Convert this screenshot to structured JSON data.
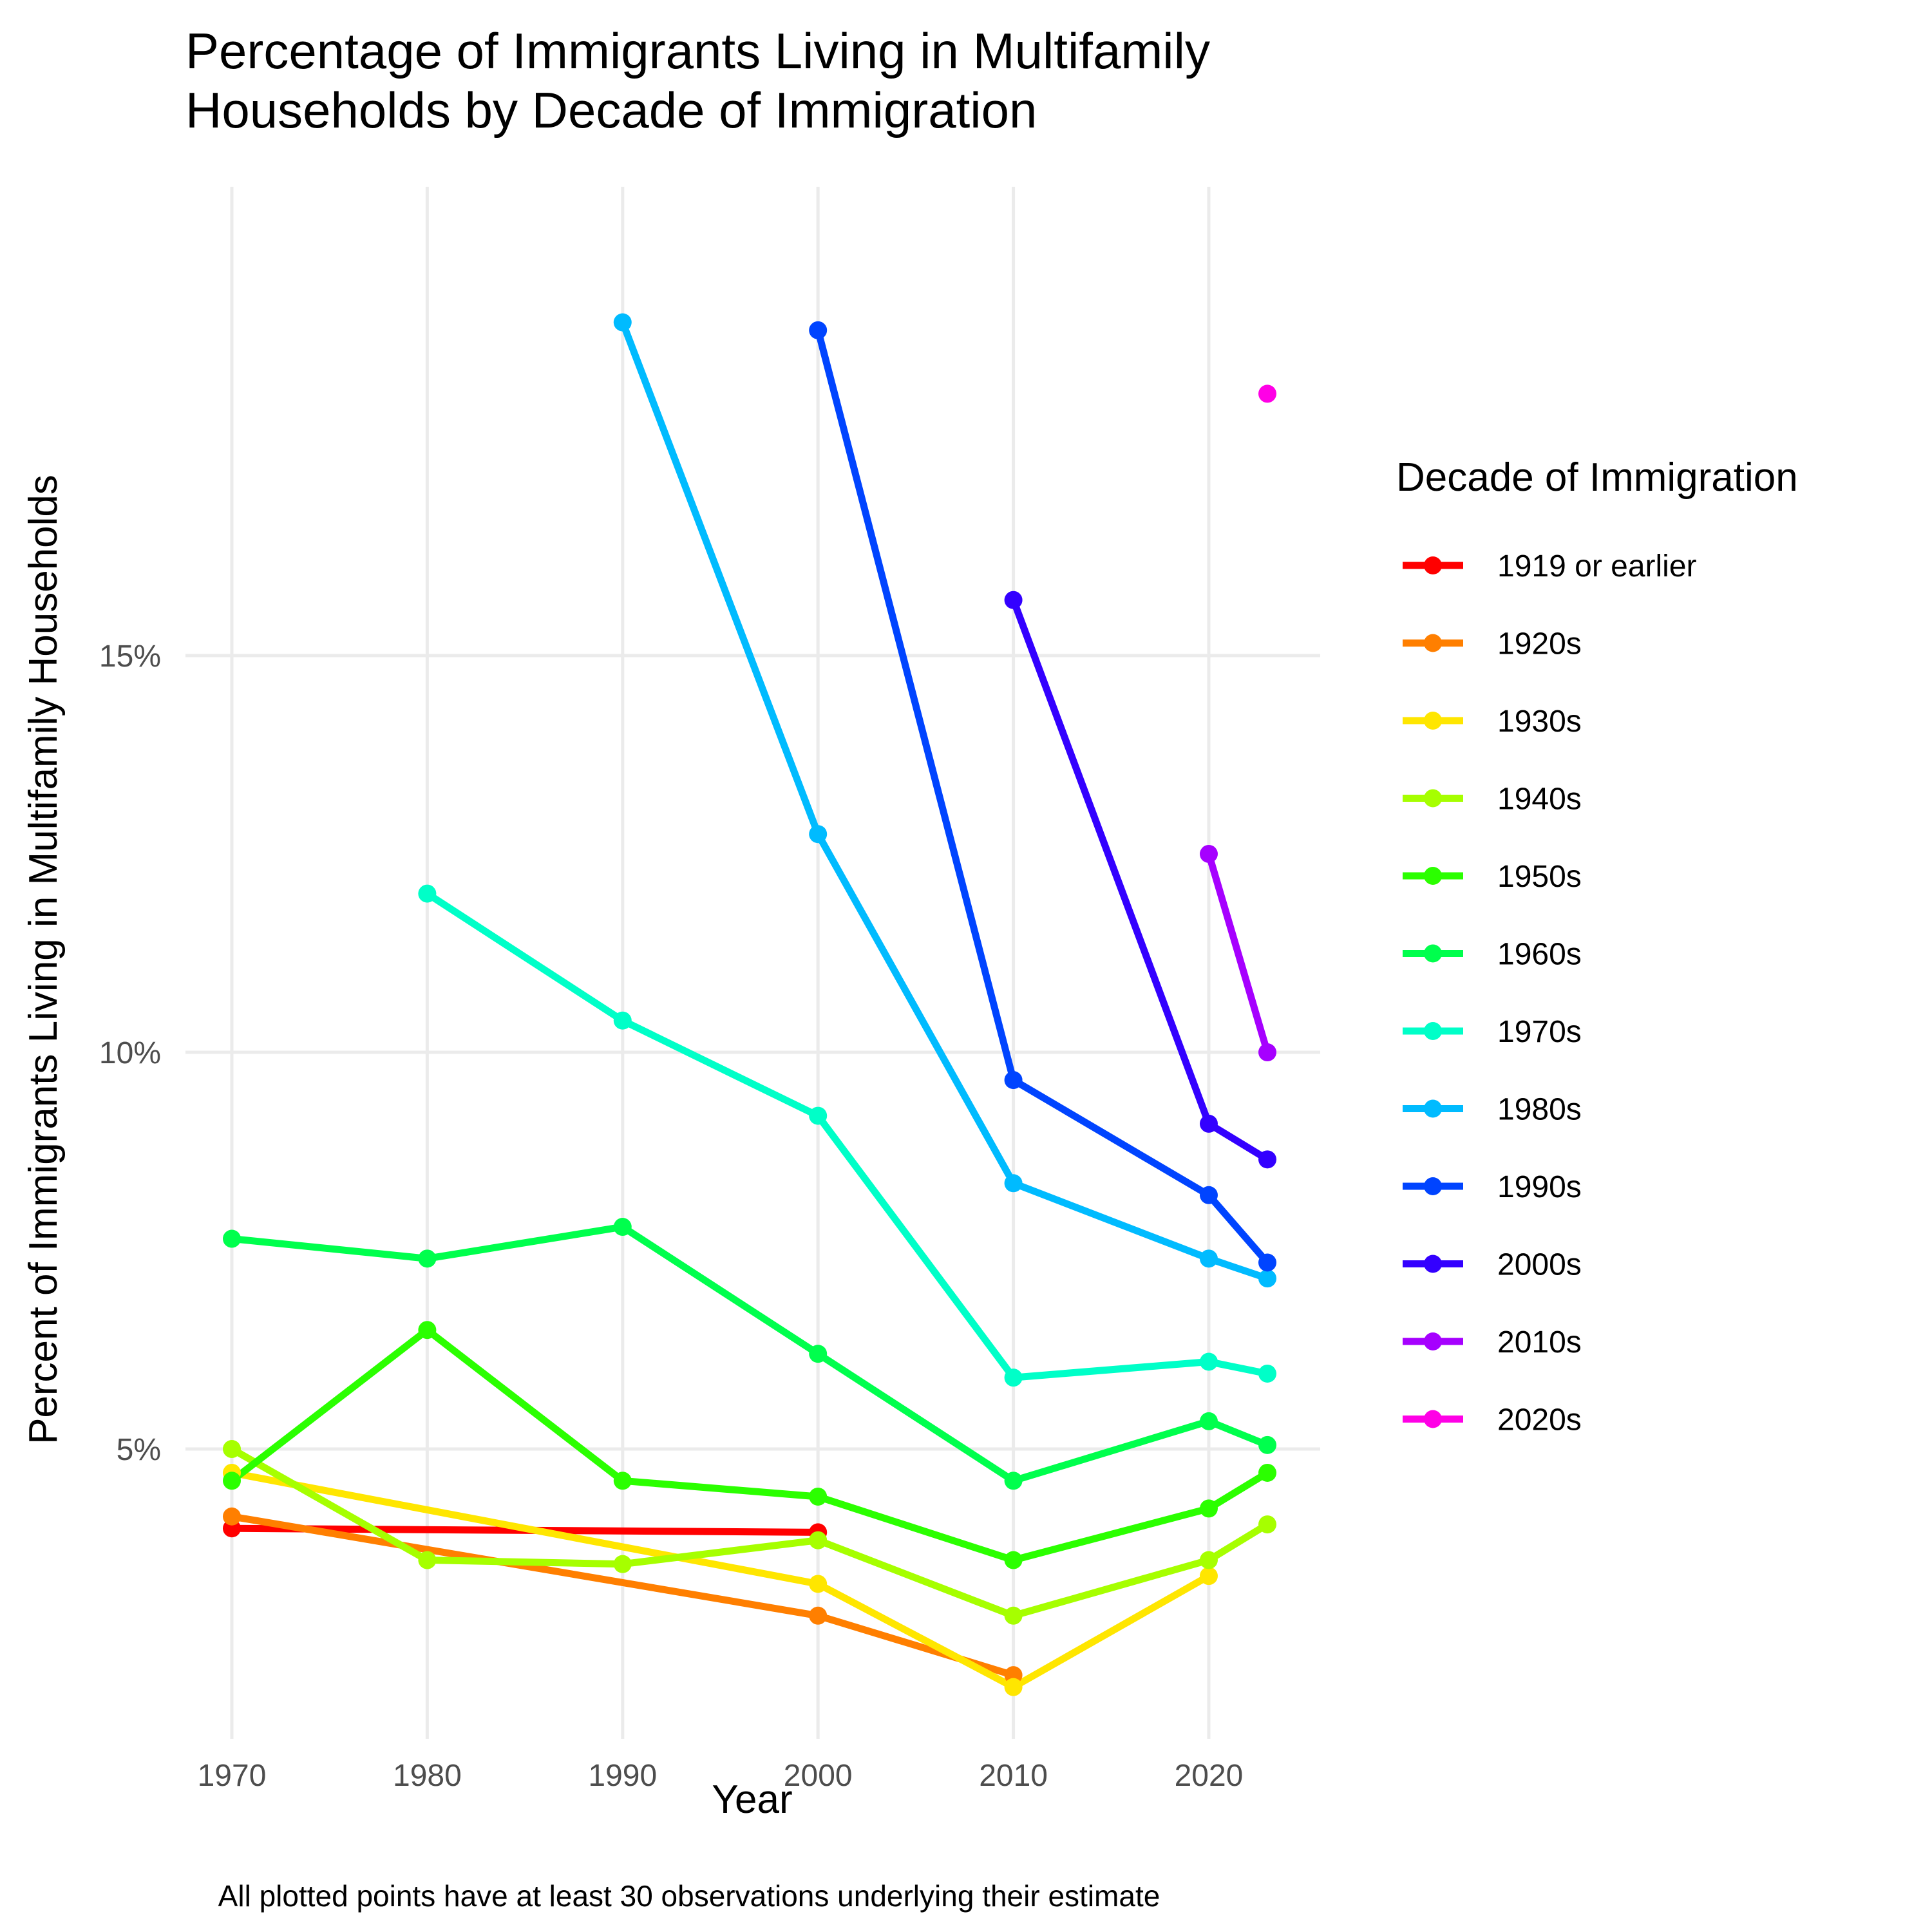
{
  "chart_data": {
    "type": "line",
    "title": [
      "Percentage of Immigrants Living in Multifamily",
      "Households by Decade of Immigration"
    ],
    "xlabel": "Year",
    "ylabel": "Percent of Immigrants Living in Multifamily Households",
    "caption": "All plotted points have at least 30 observations underlying their estimate",
    "legend_title": "Decade of Immigration",
    "legend_position": "right",
    "grid": true,
    "xlim": [
      1970,
      2023
    ],
    "ylim": [
      2.2,
      20.3
    ],
    "x_ticks": [
      1970,
      1980,
      1990,
      2000,
      2010,
      2020
    ],
    "x_tick_labels": [
      "1970",
      "1980",
      "1990",
      "2000",
      "2010",
      "2020"
    ],
    "y_ticks": [
      5,
      10,
      15
    ],
    "y_tick_labels": [
      "5%",
      "10%",
      "15%"
    ],
    "series": [
      {
        "name": "1919 or earlier",
        "color": "#FF0000",
        "points": [
          [
            1970,
            4.0
          ],
          [
            2000,
            3.95
          ]
        ]
      },
      {
        "name": "1920s",
        "color": "#FF7F00",
        "points": [
          [
            1970,
            4.15
          ],
          [
            2000,
            2.9
          ],
          [
            2010,
            2.15
          ]
        ]
      },
      {
        "name": "1930s",
        "color": "#FFE600",
        "points": [
          [
            1970,
            4.7
          ],
          [
            2000,
            3.3
          ],
          [
            2010,
            2.0
          ],
          [
            2020,
            3.4
          ]
        ]
      },
      {
        "name": "1940s",
        "color": "#A6FF00",
        "points": [
          [
            1970,
            5.0
          ],
          [
            1980,
            3.6
          ],
          [
            1990,
            3.55
          ],
          [
            2000,
            3.85
          ],
          [
            2010,
            2.9
          ],
          [
            2020,
            3.6
          ],
          [
            2023,
            4.05
          ]
        ]
      },
      {
        "name": "1950s",
        "color": "#2BFF00",
        "points": [
          [
            1970,
            4.6
          ],
          [
            1980,
            6.5
          ],
          [
            1990,
            4.6
          ],
          [
            2000,
            4.4
          ],
          [
            2010,
            3.6
          ],
          [
            2020,
            4.25
          ],
          [
            2023,
            4.7
          ]
        ]
      },
      {
        "name": "1960s",
        "color": "#00FF4D",
        "points": [
          [
            1970,
            7.65
          ],
          [
            1980,
            7.4
          ],
          [
            1990,
            7.8
          ],
          [
            2000,
            6.2
          ],
          [
            2010,
            4.6
          ],
          [
            2020,
            5.35
          ],
          [
            2023,
            5.05
          ]
        ]
      },
      {
        "name": "1970s",
        "color": "#00FFC8",
        "points": [
          [
            1980,
            12.0
          ],
          [
            1990,
            10.4
          ],
          [
            2000,
            9.2
          ],
          [
            2010,
            5.9
          ],
          [
            2020,
            6.1
          ],
          [
            2023,
            5.95
          ]
        ]
      },
      {
        "name": "1980s",
        "color": "#00BBFF",
        "points": [
          [
            1990,
            19.2
          ],
          [
            2000,
            12.75
          ],
          [
            2010,
            8.35
          ],
          [
            2020,
            7.4
          ],
          [
            2023,
            7.15
          ]
        ]
      },
      {
        "name": "1990s",
        "color": "#0044FF",
        "points": [
          [
            2000,
            19.1
          ],
          [
            2010,
            9.65
          ],
          [
            2020,
            8.2
          ],
          [
            2023,
            7.35
          ]
        ]
      },
      {
        "name": "2000s",
        "color": "#3300FF",
        "points": [
          [
            2010,
            15.7
          ],
          [
            2020,
            9.1
          ],
          [
            2023,
            8.65
          ]
        ]
      },
      {
        "name": "2010s",
        "color": "#A600FF",
        "points": [
          [
            2020,
            12.5
          ],
          [
            2023,
            10.0
          ]
        ]
      },
      {
        "name": "2020s",
        "color": "#FF00E6",
        "points": [
          [
            2023,
            18.3
          ]
        ]
      }
    ]
  }
}
